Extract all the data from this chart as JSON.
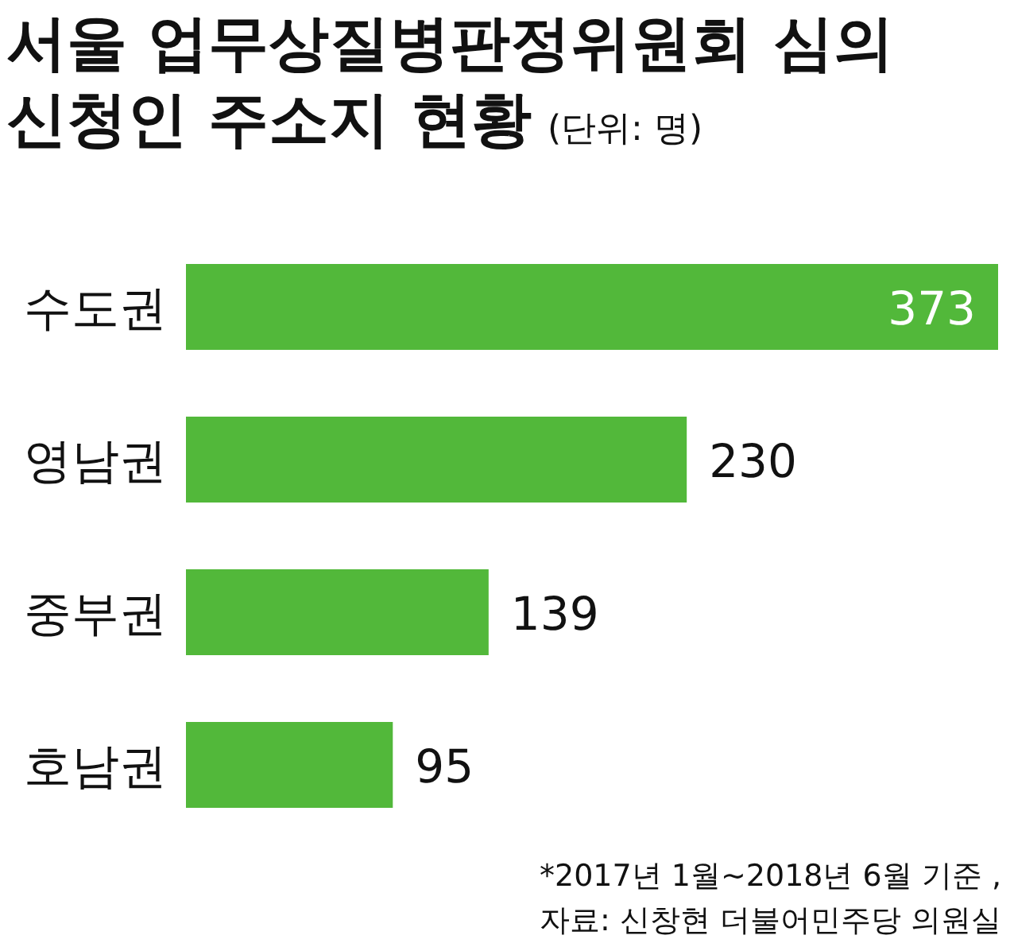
{
  "chart_data": {
    "type": "bar",
    "orientation": "horizontal",
    "title": "서울 업무상질병판정위원회 심의 신청인 주소지 현황",
    "subtitle": "(단위: 명)",
    "categories": [
      "수도권",
      "영남권",
      "중부권",
      "호남권"
    ],
    "values": [
      373,
      230,
      139,
      95
    ],
    "color": "#52b83a",
    "data_labels": true,
    "annotations": [
      "*2017년 1월~2018년 6월 기준 ,",
      "자료: 신창현 더불어민주당 의원실"
    ]
  }
}
